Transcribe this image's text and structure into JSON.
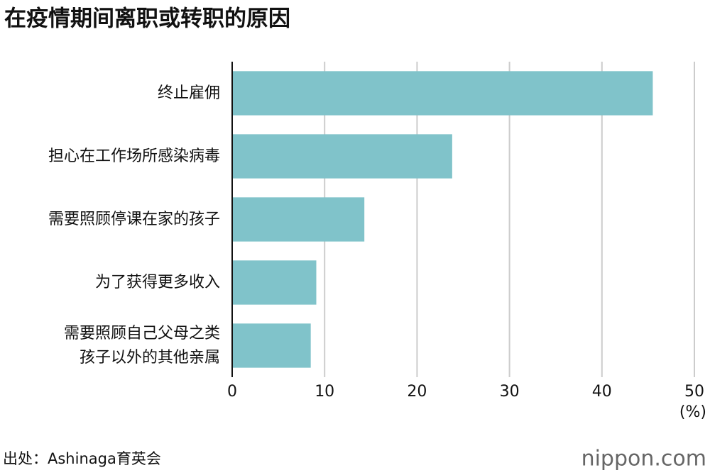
{
  "chart_data": {
    "type": "barh",
    "title": "在疫情期间离职或转职的原因",
    "categories": [
      "终止雇佣",
      "担心在工作场所感染病毒",
      "需要照顾停课在家的孩子",
      "为了获得更多收入",
      "需要照顾自己父母之类\n孩子以外的其他亲属"
    ],
    "values": [
      45.5,
      23.8,
      14.3,
      9.1,
      8.5
    ],
    "color": "#80c3ca",
    "xlim": [
      0,
      50
    ],
    "xticks": [
      0,
      10,
      20,
      30,
      40,
      50
    ],
    "grid": true,
    "unit_label": "(%)",
    "source": "出处：Ashinaga育英会",
    "logo": "nippon.com"
  }
}
